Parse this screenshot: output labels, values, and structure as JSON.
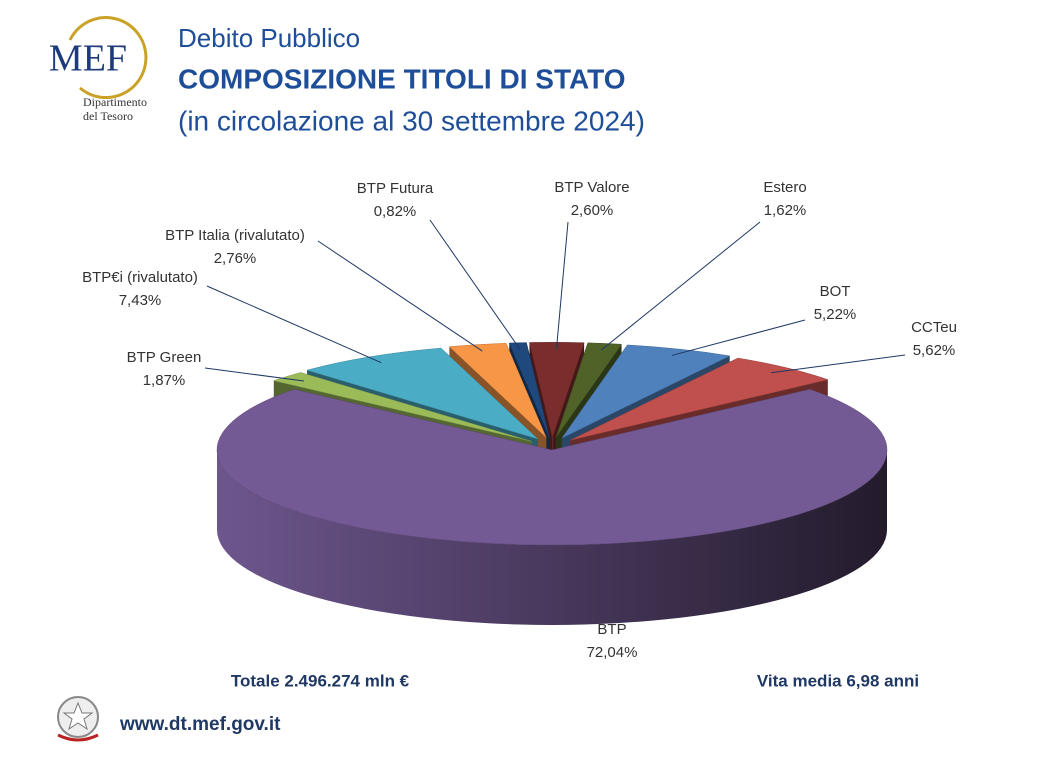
{
  "header": {
    "kicker": "Debito Pubblico",
    "logo": {
      "name": "MEF",
      "line1": "Dipartimento",
      "line2": "del Tesoro"
    }
  },
  "chart_data": {
    "type": "pie",
    "title": "COMPOSIZIONE TITOLI DI STATO",
    "subtitle": "(in circolazione al 30 settembre 2024)",
    "categories": [
      "BTP",
      "BTP Green",
      "BTP€i (rivalutato)",
      "BTP Italia (rivalutato)",
      "BTP Futura",
      "BTP Valore",
      "Estero",
      "BOT",
      "CCTeu"
    ],
    "values": [
      72.04,
      1.87,
      7.43,
      2.76,
      0.82,
      2.6,
      1.62,
      5.22,
      5.62
    ],
    "value_labels": [
      "72,04%",
      "1,87%",
      "7,43%",
      "2,76%",
      "0,82%",
      "2,60%",
      "1,62%",
      "5,22%",
      "5,62%"
    ],
    "colors": [
      "#735a94",
      "#9bbb59",
      "#4bacc6",
      "#f79646",
      "#1f497d",
      "#7b2c2c",
      "#4f6228",
      "#4f81bd",
      "#c0504d"
    ],
    "annotations": [
      "Totale 2.496.274 mln €",
      "Vita media 6,98 anni"
    ]
  },
  "footer": {
    "url": "www.dt.mef.gov.it"
  }
}
